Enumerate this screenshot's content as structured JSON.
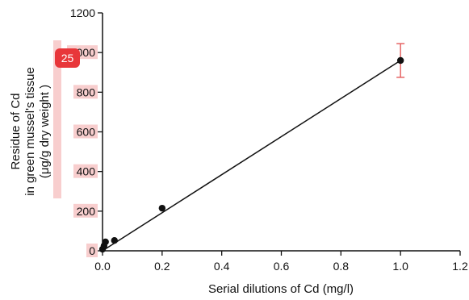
{
  "chart_data": {
    "type": "scatter",
    "title": "",
    "xlabel": "Serial dilutions of Cd (mg/l)",
    "ylabel_lines": [
      "Residue of Cd",
      "in green mussel's tissue",
      "(μg/g dry weight )"
    ],
    "xlim": [
      0,
      1.2
    ],
    "ylim": [
      0,
      1200
    ],
    "xticks": [
      0.0,
      0.2,
      0.4,
      0.6,
      0.8,
      1.0,
      1.2
    ],
    "yticks": [
      0,
      200,
      400,
      600,
      800,
      1000,
      1200
    ],
    "xtick_labels": [
      "0.0",
      "0.2",
      "0.4",
      "0.6",
      "0.8",
      "1.0",
      "1.2"
    ],
    "ytick_labels": [
      "0",
      "200",
      "400",
      "600",
      "800",
      "1000",
      "1200"
    ],
    "series": [
      {
        "x": [
          0.0,
          0.005,
          0.01,
          0.04,
          0.2,
          1.0
        ],
        "y": [
          8,
          25,
          45,
          52,
          215,
          960
        ],
        "yerr": [
          null,
          null,
          null,
          null,
          null,
          85
        ],
        "color": "#111111",
        "error_color": "#e45a5a"
      }
    ],
    "fit_line": {
      "x": [
        0.0,
        1.0
      ],
      "y": [
        0,
        960
      ],
      "color": "#111111"
    },
    "grid": false
  },
  "annotation": {
    "badge_text": "25",
    "badge_color": "#e8363a"
  }
}
